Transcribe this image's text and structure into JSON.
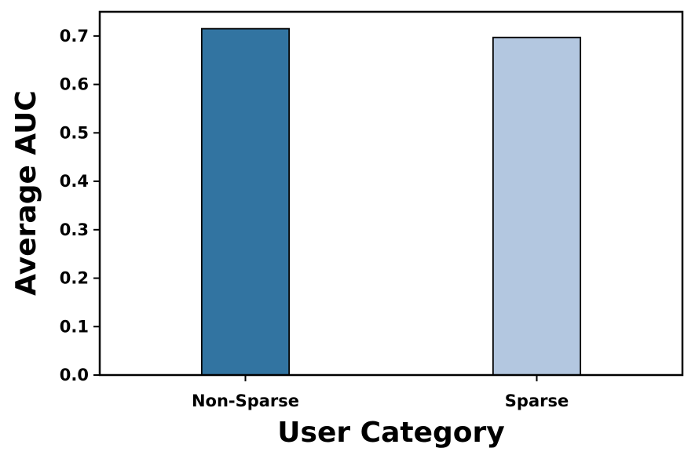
{
  "chart_data": {
    "type": "bar",
    "categories": [
      "Non-Sparse",
      "Sparse"
    ],
    "values": [
      0.715,
      0.697
    ],
    "colors": [
      "#3274a1",
      "#b3c7e0"
    ],
    "xlabel": "User Category",
    "ylabel": "Average AUC",
    "ylim": [
      0,
      0.75
    ],
    "yticks": [
      {
        "value": 0,
        "label": "0.0"
      },
      0.1,
      0.2,
      0.3,
      0.4,
      0.5,
      0.6,
      0.7
    ],
    "grid": false
  }
}
